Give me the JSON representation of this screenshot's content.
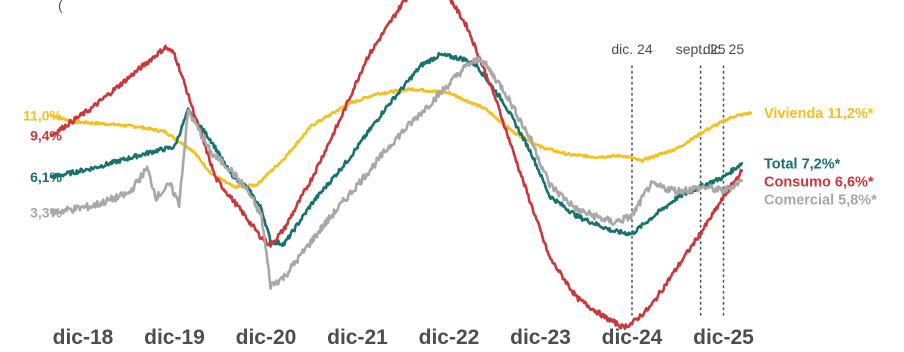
{
  "chart_data": {
    "type": "line",
    "x_tick_labels": [
      "dic-18",
      "dic-19",
      "dic-20",
      "dic-21",
      "dic-22",
      "dic-23",
      "dic-24",
      "dic-25"
    ],
    "top_text": "(",
    "markers": [
      {
        "label": "dic. 24",
        "x": 6.0
      },
      {
        "label": "sept. 25",
        "x": 6.75
      },
      {
        "label": "dic. 25",
        "x": 7.0
      }
    ],
    "series": [
      {
        "name": "Vivienda",
        "color": "#f5bf1c",
        "start_label": "11,0%",
        "end_label": "Vivienda 11,2%*",
        "points": [
          [
            -0.35,
            11.0
          ],
          [
            -0.1,
            10.5
          ],
          [
            0.3,
            10.3
          ],
          [
            0.6,
            10.1
          ],
          [
            0.9,
            9.7
          ],
          [
            1.2,
            8.2
          ],
          [
            1.4,
            6.4
          ],
          [
            1.65,
            5.3
          ],
          [
            1.9,
            5.5
          ],
          [
            2.2,
            7.6
          ],
          [
            2.5,
            10.2
          ],
          [
            2.9,
            11.9
          ],
          [
            3.2,
            12.7
          ],
          [
            3.6,
            13.1
          ],
          [
            4.0,
            12.8
          ],
          [
            4.4,
            11.5
          ],
          [
            4.7,
            9.7
          ],
          [
            5.0,
            8.5
          ],
          [
            5.3,
            7.9
          ],
          [
            5.6,
            7.7
          ],
          [
            5.9,
            7.8
          ],
          [
            6.1,
            7.4
          ],
          [
            6.5,
            8.4
          ],
          [
            6.8,
            9.8
          ],
          [
            7.1,
            10.9
          ],
          [
            7.3,
            11.2
          ]
        ],
        "noise": 0.1
      },
      {
        "name": "Total",
        "color": "#16726e",
        "start_label": "6,1%",
        "end_label": "Total 7,2%*",
        "points": [
          [
            -0.35,
            6.1
          ],
          [
            0.1,
            6.8
          ],
          [
            0.5,
            7.6
          ],
          [
            0.8,
            8.2
          ],
          [
            1.0,
            8.5
          ],
          [
            1.15,
            11.4
          ],
          [
            1.4,
            9.0
          ],
          [
            1.6,
            6.5
          ],
          [
            1.8,
            5.2
          ],
          [
            1.95,
            3.6
          ],
          [
            2.05,
            1.0
          ],
          [
            2.2,
            0.8
          ],
          [
            2.5,
            4.0
          ],
          [
            2.9,
            7.5
          ],
          [
            3.3,
            11.5
          ],
          [
            3.7,
            15.0
          ],
          [
            3.9,
            15.8
          ],
          [
            4.15,
            15.5
          ],
          [
            4.3,
            15.0
          ],
          [
            4.6,
            12.0
          ],
          [
            4.9,
            8.0
          ],
          [
            5.1,
            4.6
          ],
          [
            5.4,
            3.0
          ],
          [
            5.8,
            1.8
          ],
          [
            6.0,
            1.6
          ],
          [
            6.2,
            2.8
          ],
          [
            6.5,
            4.5
          ],
          [
            6.8,
            5.5
          ],
          [
            7.0,
            6.1
          ],
          [
            7.2,
            7.2
          ]
        ],
        "noise": 0.18
      },
      {
        "name": "Consumo",
        "color": "#c9373b",
        "start_label": "9,4%",
        "end_label": "Consumo 6,6%*",
        "points": [
          [
            -0.35,
            9.4
          ],
          [
            0.1,
            11.6
          ],
          [
            0.5,
            14.0
          ],
          [
            0.9,
            16.4
          ],
          [
            1.0,
            15.9
          ],
          [
            1.2,
            11.5
          ],
          [
            1.45,
            6.0
          ],
          [
            1.7,
            3.7
          ],
          [
            1.95,
            1.3
          ],
          [
            2.05,
            0.7
          ],
          [
            2.2,
            2.0
          ],
          [
            2.5,
            6.0
          ],
          [
            2.8,
            10.5
          ],
          [
            3.1,
            15.5
          ],
          [
            3.5,
            20.0
          ],
          [
            3.75,
            22.0
          ],
          [
            3.95,
            21.0
          ],
          [
            4.2,
            18.0
          ],
          [
            4.5,
            12.5
          ],
          [
            4.8,
            6.0
          ],
          [
            5.1,
            -0.3
          ],
          [
            5.4,
            -3.5
          ],
          [
            5.7,
            -5.0
          ],
          [
            5.9,
            -5.8
          ],
          [
            6.0,
            -5.5
          ],
          [
            6.2,
            -4.2
          ],
          [
            6.5,
            -1.0
          ],
          [
            6.8,
            2.2
          ],
          [
            7.0,
            4.5
          ],
          [
            7.2,
            6.6
          ]
        ],
        "noise": 0.2
      },
      {
        "name": "Comercial",
        "color": "#a8a8a8",
        "start_label": "3,3%",
        "end_label": "Comercial 5,8%*",
        "points": [
          [
            -0.35,
            3.3
          ],
          [
            0.1,
            3.8
          ],
          [
            0.5,
            4.8
          ],
          [
            0.7,
            6.8
          ],
          [
            0.8,
            4.5
          ],
          [
            0.95,
            5.5
          ],
          [
            1.05,
            4.0
          ],
          [
            1.15,
            11.4
          ],
          [
            1.4,
            8.0
          ],
          [
            1.6,
            6.8
          ],
          [
            1.8,
            5.0
          ],
          [
            1.95,
            3.0
          ],
          [
            2.05,
            -2.5
          ],
          [
            2.2,
            -1.8
          ],
          [
            2.6,
            2.0
          ],
          [
            3.0,
            5.5
          ],
          [
            3.4,
            9.0
          ],
          [
            3.8,
            12.0
          ],
          [
            4.2,
            15.0
          ],
          [
            4.35,
            15.5
          ],
          [
            4.6,
            13.0
          ],
          [
            4.9,
            9.0
          ],
          [
            5.1,
            5.5
          ],
          [
            5.4,
            3.5
          ],
          [
            5.8,
            2.5
          ],
          [
            6.0,
            3.0
          ],
          [
            6.2,
            5.5
          ],
          [
            6.5,
            5.0
          ],
          [
            6.8,
            5.3
          ],
          [
            7.0,
            5.0
          ],
          [
            7.2,
            5.8
          ]
        ],
        "noise": 0.3
      }
    ]
  }
}
